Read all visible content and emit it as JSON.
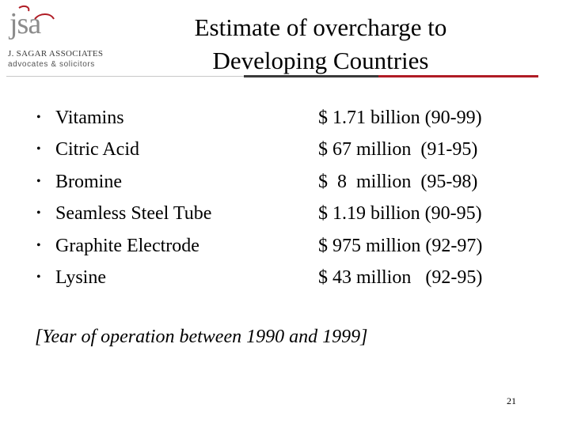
{
  "logo": {
    "mark_text": "jsa",
    "name": "J. SAGAR ASSOCIATES",
    "tagline": "advocates & solicitors",
    "colors": {
      "grey": "#8c8c8c",
      "red": "#b01c25"
    }
  },
  "slide": {
    "title_line1": "Estimate of overcharge to",
    "title_line2": "Developing Countries",
    "rule_colors": {
      "light": "#c8c8c8",
      "dark": "#3a3a3a",
      "red": "#b01c25"
    },
    "bullet": "•",
    "items": [
      {
        "label": "Vitamins",
        "value": "$ 1.71 billion (90-99)"
      },
      {
        "label": "Citric Acid",
        "value": "$ 67 million  (91-95)"
      },
      {
        "label": "Bromine",
        "value": "$  8  million  (95-98)"
      },
      {
        "label": "Seamless Steel Tube",
        "value": "$ 1.19 billion (90-95)"
      },
      {
        "label": "Graphite Electrode",
        "value": "$ 975 million (92-97)"
      },
      {
        "label": "Lysine",
        "value": "$ 43 million   (92-95)"
      }
    ],
    "note": "[Year of operation between 1990 and 1999]",
    "page_number": "21"
  }
}
